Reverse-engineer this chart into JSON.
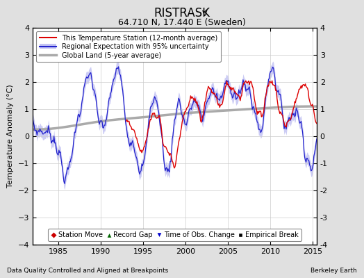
{
  "title": "RISTRASK",
  "title_subscript": "V",
  "subtitle": "64.710 N, 17.440 E (Sweden)",
  "footer_left": "Data Quality Controlled and Aligned at Breakpoints",
  "footer_right": "Berkeley Earth",
  "ylabel": "Temperature Anomaly (°C)",
  "xlim": [
    1982.0,
    2015.5
  ],
  "ylim": [
    -4,
    4
  ],
  "yticks": [
    -4,
    -3,
    -2,
    -1,
    0,
    1,
    2,
    3,
    4
  ],
  "xticks": [
    1985,
    1990,
    1995,
    2000,
    2005,
    2010,
    2015
  ],
  "line_red_color": "#dd0000",
  "line_blue_color": "#2222cc",
  "band_color": "#aaaaee",
  "line_gray_color": "#aaaaaa",
  "bg_color": "#e0e0e0",
  "plot_bg_color": "#ffffff",
  "grid_color": "#cccccc",
  "legend_line_items": [
    {
      "label": "This Temperature Station (12-month average)",
      "color": "#dd0000",
      "lw": 1.5
    },
    {
      "label": "Regional Expectation with 95% uncertainty",
      "color": "#2222cc",
      "lw": 1.5
    },
    {
      "label": "Global Land (5-year average)",
      "color": "#aaaaaa",
      "lw": 2.5
    }
  ],
  "marker_legend": [
    {
      "marker": "D",
      "color": "#cc0000",
      "label": "Station Move",
      "mfc": "#cc0000"
    },
    {
      "marker": "^",
      "color": "#006600",
      "label": "Record Gap",
      "mfc": "#006600"
    },
    {
      "marker": "v",
      "color": "#0000cc",
      "label": "Time of Obs. Change",
      "mfc": "#0000cc"
    },
    {
      "marker": "s",
      "color": "#000000",
      "label": "Empirical Break",
      "mfc": "#000000"
    }
  ]
}
